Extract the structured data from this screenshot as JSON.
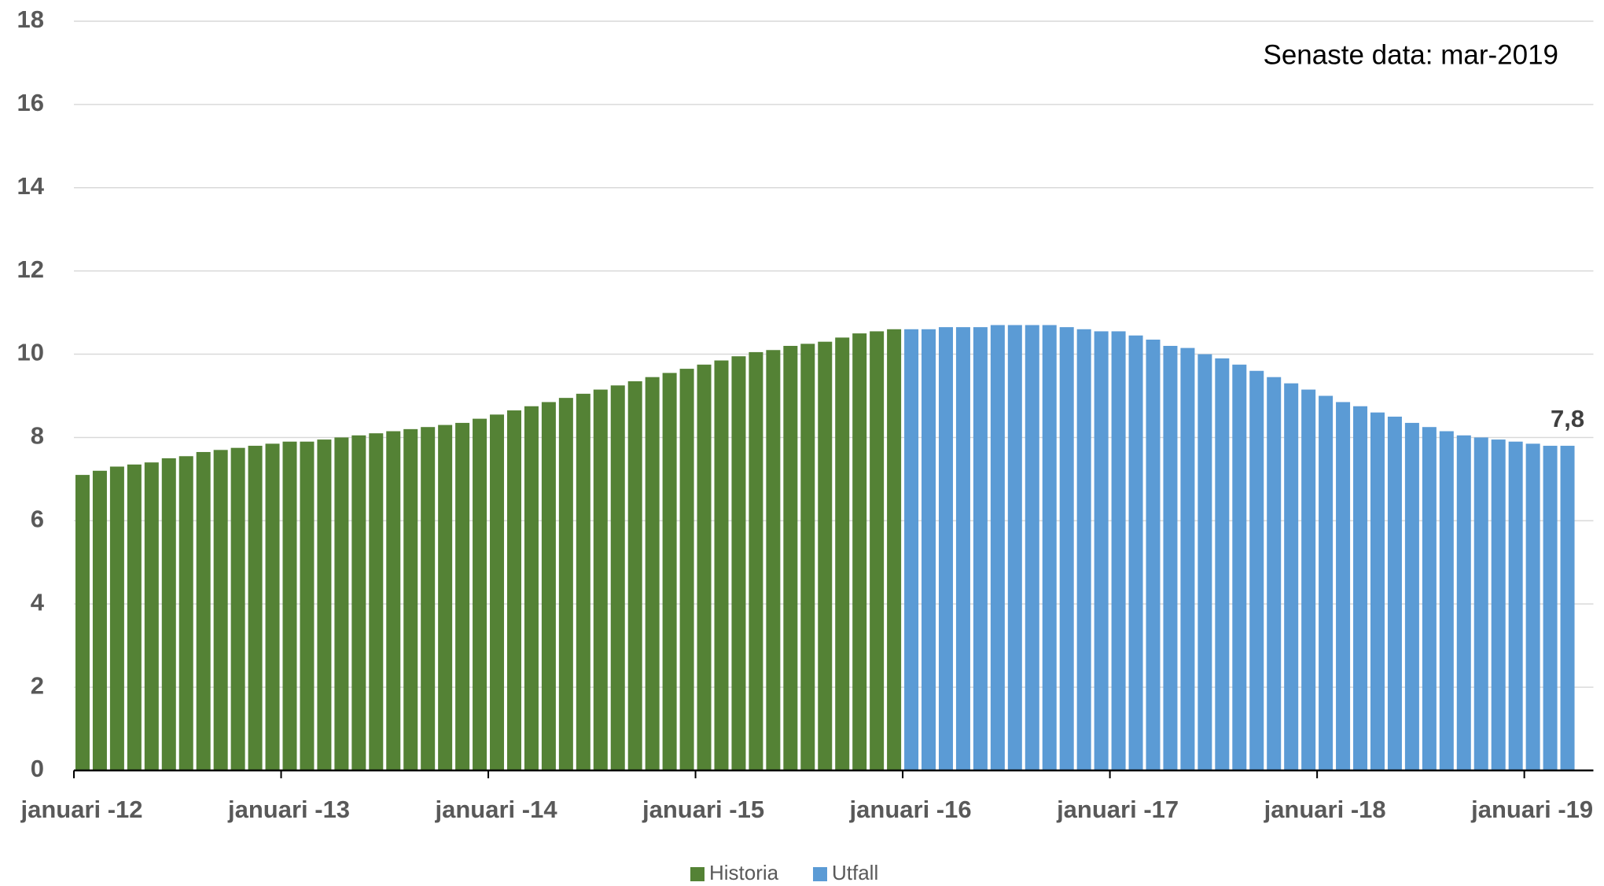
{
  "chart_data": {
    "type": "bar",
    "annotation": "Senaste data: mar-2019",
    "categories": [
      "januari -12",
      null,
      null,
      null,
      null,
      null,
      null,
      null,
      null,
      null,
      null,
      null,
      "januari -13",
      null,
      null,
      null,
      null,
      null,
      null,
      null,
      null,
      null,
      null,
      null,
      "januari -14",
      null,
      null,
      null,
      null,
      null,
      null,
      null,
      null,
      null,
      null,
      null,
      "januari -15",
      null,
      null,
      null,
      null,
      null,
      null,
      null,
      null,
      null,
      null,
      null,
      "januari -16",
      null,
      null,
      null,
      null,
      null,
      null,
      null,
      null,
      null,
      null,
      null,
      "januari -17",
      null,
      null,
      null,
      null,
      null,
      null,
      null,
      null,
      null,
      null,
      null,
      "januari -18",
      null,
      null,
      null,
      null,
      null,
      null,
      null,
      null,
      null,
      null,
      null,
      "januari -19",
      null,
      null
    ],
    "series": [
      {
        "name": "Historia",
        "color": "#548235",
        "values": [
          7.1,
          7.2,
          7.3,
          7.35,
          7.4,
          7.5,
          7.55,
          7.65,
          7.7,
          7.75,
          7.8,
          7.85,
          7.9,
          7.9,
          7.95,
          8.0,
          8.05,
          8.1,
          8.15,
          8.2,
          8.25,
          8.3,
          8.35,
          8.45,
          8.55,
          8.65,
          8.75,
          8.85,
          8.95,
          9.05,
          9.15,
          9.25,
          9.35,
          9.45,
          9.55,
          9.65,
          9.75,
          9.85,
          9.95,
          10.05,
          10.1,
          10.2,
          10.25,
          10.3,
          10.4,
          10.5,
          10.55,
          10.6,
          null,
          null,
          null,
          null,
          null,
          null,
          null,
          null,
          null,
          null,
          null,
          null,
          null,
          null,
          null,
          null,
          null,
          null,
          null,
          null,
          null,
          null,
          null,
          null,
          null,
          null,
          null,
          null,
          null,
          null,
          null,
          null,
          null,
          null,
          null,
          null,
          null,
          null,
          null
        ]
      },
      {
        "name": "Utfall",
        "color": "#5b9bd5",
        "values": [
          null,
          null,
          null,
          null,
          null,
          null,
          null,
          null,
          null,
          null,
          null,
          null,
          null,
          null,
          null,
          null,
          null,
          null,
          null,
          null,
          null,
          null,
          null,
          null,
          null,
          null,
          null,
          null,
          null,
          null,
          null,
          null,
          null,
          null,
          null,
          null,
          null,
          null,
          null,
          null,
          null,
          null,
          null,
          null,
          null,
          null,
          null,
          null,
          10.6,
          10.6,
          10.65,
          10.65,
          10.65,
          10.7,
          10.7,
          10.7,
          10.7,
          10.65,
          10.6,
          10.55,
          10.55,
          10.45,
          10.35,
          10.2,
          10.15,
          10.0,
          9.9,
          9.75,
          9.6,
          9.45,
          9.3,
          9.15,
          9.0,
          8.85,
          8.75,
          8.6,
          8.5,
          8.35,
          8.25,
          8.15,
          8.05,
          8.0,
          7.95,
          7.9,
          7.85,
          7.8,
          7.8
        ],
        "value_labels": [
          null,
          null,
          null,
          null,
          null,
          null,
          null,
          null,
          null,
          null,
          null,
          null,
          null,
          null,
          null,
          null,
          null,
          null,
          null,
          null,
          null,
          null,
          null,
          null,
          null,
          null,
          null,
          null,
          null,
          null,
          null,
          null,
          null,
          null,
          null,
          null,
          null,
          null,
          null,
          null,
          null,
          null,
          null,
          null,
          null,
          null,
          null,
          null,
          null,
          null,
          null,
          null,
          null,
          null,
          null,
          null,
          null,
          null,
          null,
          null,
          null,
          null,
          null,
          null,
          null,
          null,
          null,
          null,
          null,
          null,
          null,
          null,
          null,
          null,
          null,
          null,
          null,
          null,
          null,
          null,
          null,
          null,
          null,
          null,
          null,
          null,
          "7,8"
        ]
      }
    ],
    "ylim": [
      0,
      18
    ],
    "yticks": [
      0,
      2,
      4,
      6,
      8,
      10,
      12,
      14,
      16,
      18
    ],
    "grid": true
  }
}
